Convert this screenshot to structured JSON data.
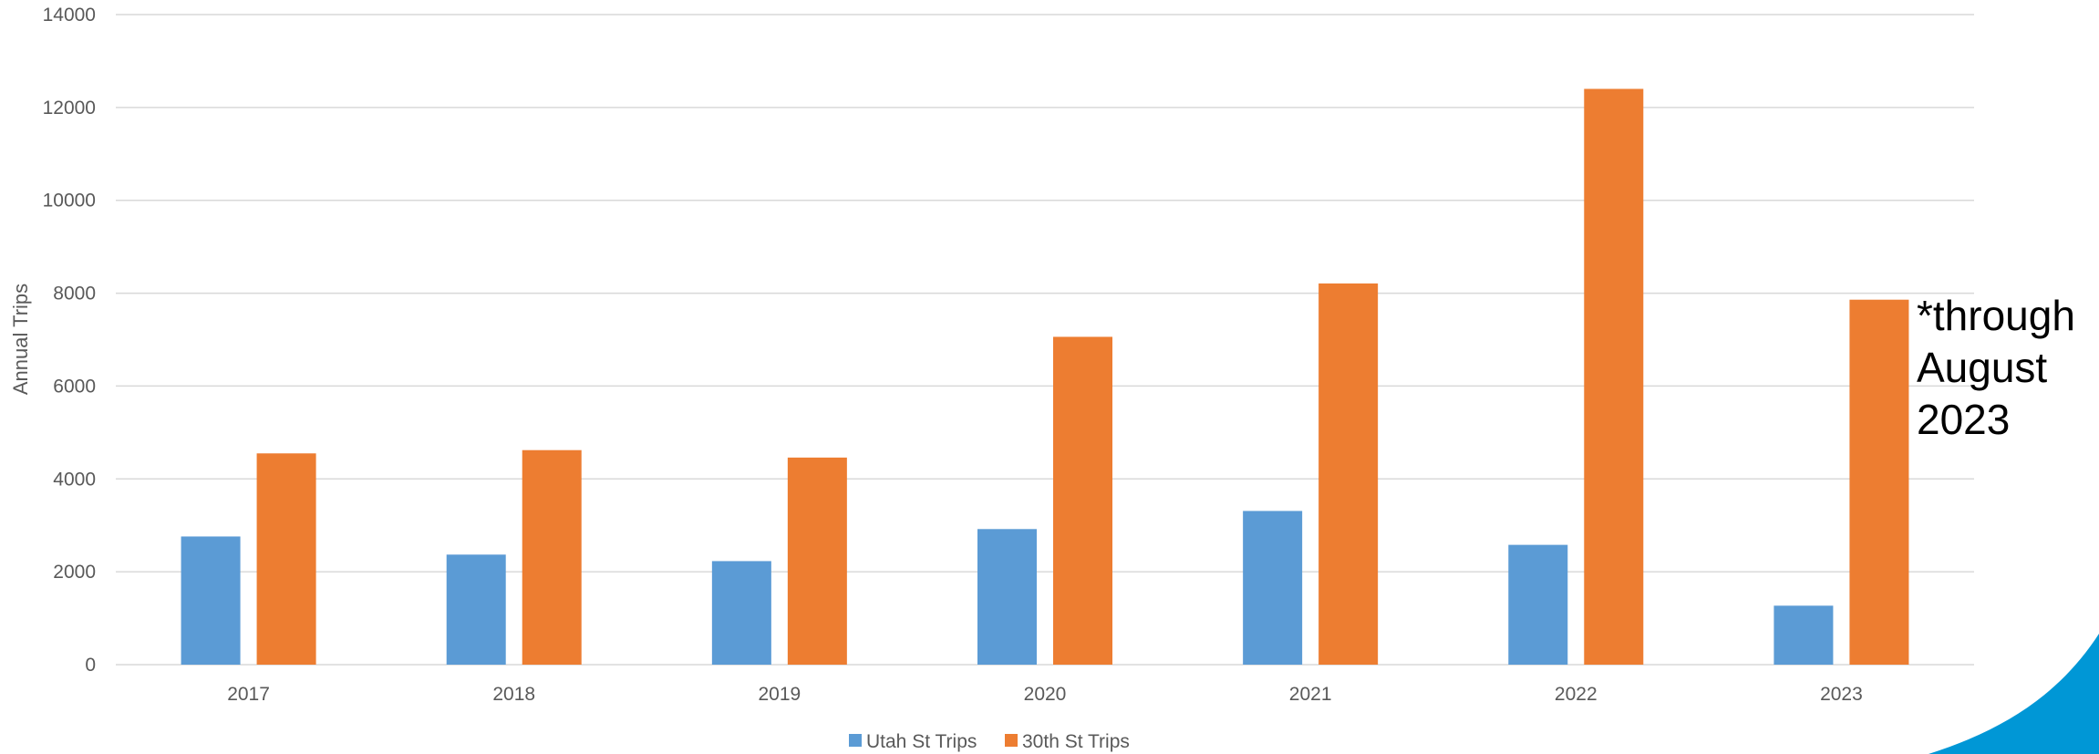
{
  "chart_data": {
    "type": "bar",
    "title": "",
    "xlabel": "",
    "ylabel": "Annual Trips",
    "categories": [
      "2017",
      "2018",
      "2019",
      "2020",
      "2021",
      "2022",
      "2023"
    ],
    "series": [
      {
        "name": "Utah St Trips",
        "values": [
          2760,
          2370,
          2230,
          2920,
          3310,
          2580,
          1270
        ]
      },
      {
        "name": "30th St Trips",
        "values": [
          4550,
          4620,
          4460,
          7060,
          8210,
          12400,
          7860
        ]
      }
    ],
    "ylim": [
      0,
      14000
    ],
    "yticks": [
      "0",
      "2000",
      "4000",
      "6000",
      "8000",
      "10000",
      "12000",
      "14000"
    ],
    "grid": true,
    "legend": "bottom",
    "annotation": [
      "*through",
      "August",
      "2023"
    ]
  },
  "colors": {
    "series": [
      "#5B9BD5",
      "#ED7D31"
    ],
    "grid": "#D9D9D9",
    "decor": "#0097D6"
  }
}
